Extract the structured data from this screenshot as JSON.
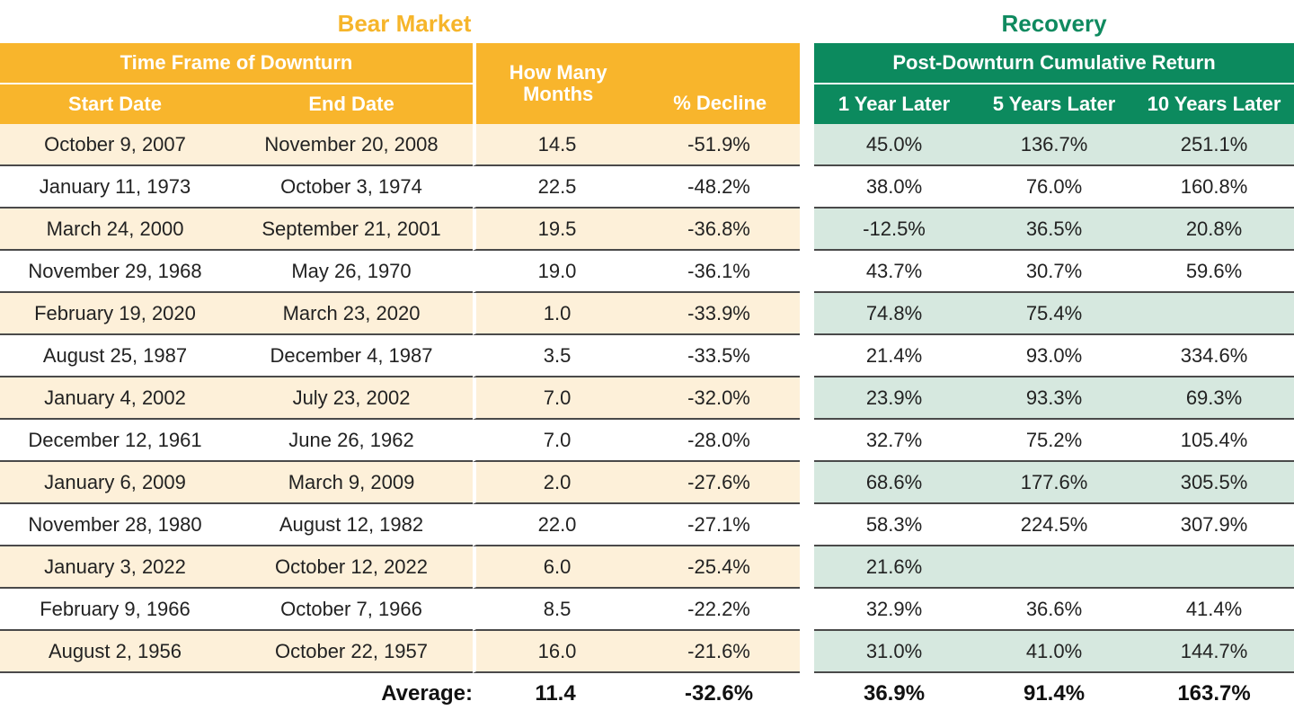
{
  "titles": {
    "bear": "Bear Market",
    "recovery": "Recovery"
  },
  "headers": {
    "time_frame": "Time Frame of Downturn",
    "start_date": "Start Date",
    "end_date": "End Date",
    "months": "How Many Months",
    "decline": "% Decline",
    "post_downturn": "Post-Downturn Cumulative Return",
    "y1": "1 Year Later",
    "y5": "5 Years Later",
    "y10": "10 Years Later"
  },
  "rows": [
    {
      "start": "October 9, 2007",
      "end": "November 20, 2008",
      "months": "14.5",
      "decline": "-51.9%",
      "y1": "45.0%",
      "y5": "136.7%",
      "y10": "251.1%"
    },
    {
      "start": "January 11, 1973",
      "end": "October 3, 1974",
      "months": "22.5",
      "decline": "-48.2%",
      "y1": "38.0%",
      "y5": "76.0%",
      "y10": "160.8%"
    },
    {
      "start": "March 24, 2000",
      "end": "September 21, 2001",
      "months": "19.5",
      "decline": "-36.8%",
      "y1": "-12.5%",
      "y5": "36.5%",
      "y10": "20.8%"
    },
    {
      "start": "November 29, 1968",
      "end": "May 26, 1970",
      "months": "19.0",
      "decline": "-36.1%",
      "y1": "43.7%",
      "y5": "30.7%",
      "y10": "59.6%"
    },
    {
      "start": "February 19, 2020",
      "end": "March 23, 2020",
      "months": "1.0",
      "decline": "-33.9%",
      "y1": "74.8%",
      "y5": "75.4%",
      "y10": ""
    },
    {
      "start": "August 25, 1987",
      "end": "December 4, 1987",
      "months": "3.5",
      "decline": "-33.5%",
      "y1": "21.4%",
      "y5": "93.0%",
      "y10": "334.6%"
    },
    {
      "start": "January 4, 2002",
      "end": "July 23, 2002",
      "months": "7.0",
      "decline": "-32.0%",
      "y1": "23.9%",
      "y5": "93.3%",
      "y10": "69.3%"
    },
    {
      "start": "December 12, 1961",
      "end": "June 26, 1962",
      "months": "7.0",
      "decline": "-28.0%",
      "y1": "32.7%",
      "y5": "75.2%",
      "y10": "105.4%"
    },
    {
      "start": "January 6, 2009",
      "end": "March 9, 2009",
      "months": "2.0",
      "decline": "-27.6%",
      "y1": "68.6%",
      "y5": "177.6%",
      "y10": "305.5%"
    },
    {
      "start": "November 28, 1980",
      "end": "August 12, 1982",
      "months": "22.0",
      "decline": "-27.1%",
      "y1": "58.3%",
      "y5": "224.5%",
      "y10": "307.9%"
    },
    {
      "start": "January 3, 2022",
      "end": "October 12, 2022",
      "months": "6.0",
      "decline": "-25.4%",
      "y1": "21.6%",
      "y5": "",
      "y10": ""
    },
    {
      "start": "February 9, 1966",
      "end": "October 7, 1966",
      "months": "8.5",
      "decline": "-22.2%",
      "y1": "32.9%",
      "y5": "36.6%",
      "y10": "41.4%"
    },
    {
      "start": "August 2, 1956",
      "end": "October 22, 1957",
      "months": "16.0",
      "decline": "-21.6%",
      "y1": "31.0%",
      "y5": "41.0%",
      "y10": "144.7%"
    }
  ],
  "average": {
    "label": "Average:",
    "months": "11.4",
    "decline": "-32.6%",
    "y1": "36.9%",
    "y5": "91.4%",
    "y10": "163.7%"
  },
  "colors": {
    "bear_header": "#f8b52c",
    "bear_title": "#f6b52a",
    "bear_stripe": "#fdf0d9",
    "recovery_header": "#0c8a5e",
    "recovery_title": "#0f8a5f",
    "recovery_stripe": "#d6e8df"
  }
}
